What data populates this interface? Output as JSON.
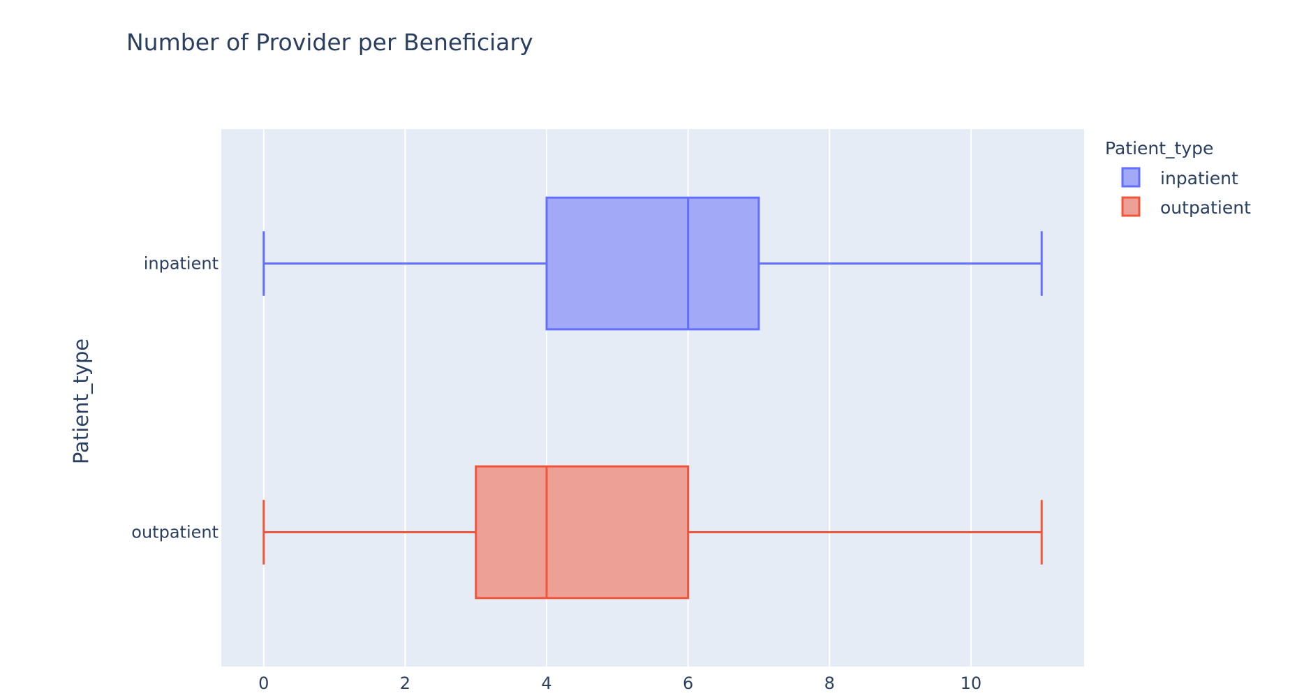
{
  "chart_data": {
    "type": "box",
    "title": "Number of Provider per Beneficiary",
    "xlabel": "",
    "ylabel": "Patient_type",
    "xlim": [
      -0.6,
      11.6
    ],
    "xticks": [
      0,
      2,
      4,
      6,
      8,
      10
    ],
    "orientation": "horizontal",
    "grid": true,
    "legend_title": "Patient_type",
    "legend_position": "top-right",
    "categories": [
      "inpatient",
      "outpatient"
    ],
    "series": [
      {
        "name": "inpatient",
        "category": "inpatient",
        "min": 0,
        "q1": 4,
        "median": 6,
        "q3": 7,
        "max": 11,
        "line_color": "#636efa",
        "fill_color": "#a2aaf7"
      },
      {
        "name": "outpatient",
        "category": "outpatient",
        "min": 0,
        "q1": 3,
        "median": 4,
        "q3": 6,
        "max": 11,
        "line_color": "#ef553b",
        "fill_color": "#eca096"
      }
    ],
    "plot_background": "#e5ecf6",
    "gridline_color": "#ffffff"
  }
}
